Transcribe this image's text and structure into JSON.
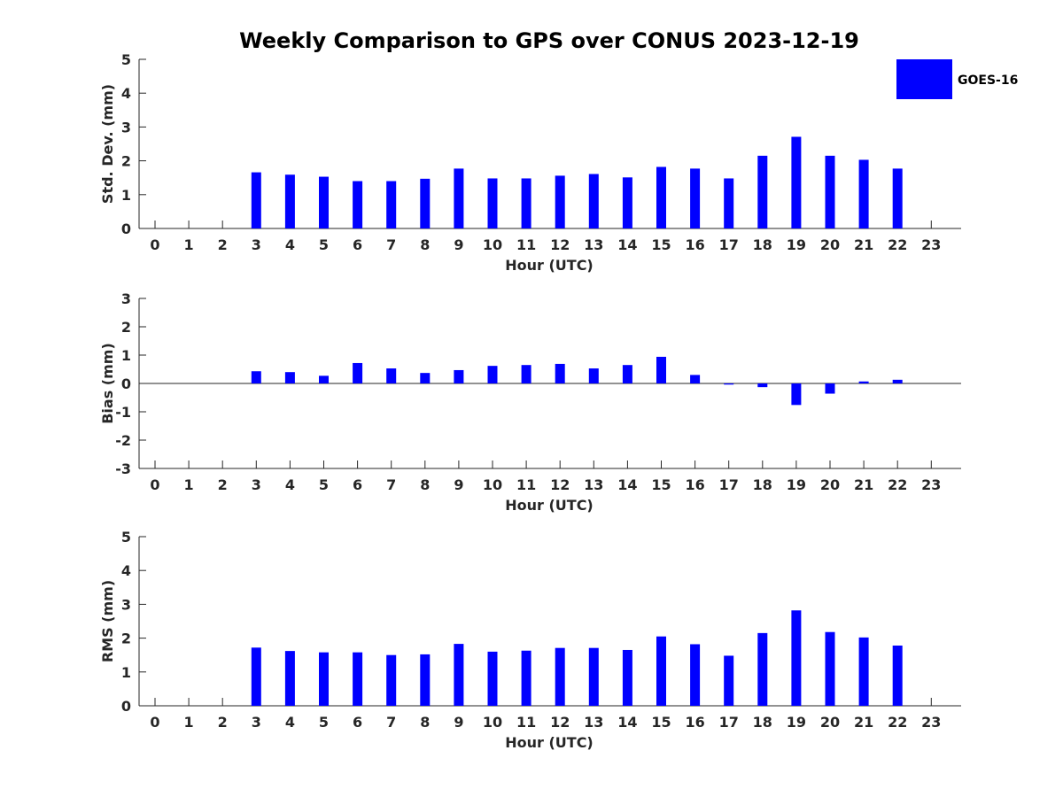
{
  "title": "Weekly Comparison to GPS over CONUS 2023-12-19",
  "legend": {
    "label": "GOES-16",
    "color": "#0000ff"
  },
  "chart_data": [
    {
      "type": "bar",
      "name": "std-dev",
      "ylabel": "Std. Dev. (mm)",
      "xlabel": "Hour (UTC)",
      "ylim": [
        0,
        5
      ],
      "yticks": [
        0,
        1,
        2,
        3,
        4,
        5
      ],
      "baseline_line": false,
      "categories": [
        "0",
        "1",
        "2",
        "3",
        "4",
        "5",
        "6",
        "7",
        "8",
        "9",
        "10",
        "11",
        "12",
        "13",
        "14",
        "15",
        "16",
        "17",
        "18",
        "19",
        "20",
        "21",
        "22",
        "23"
      ],
      "series": [
        {
          "name": "GOES-16",
          "values": [
            null,
            null,
            null,
            1.66,
            1.59,
            1.53,
            1.4,
            1.4,
            1.47,
            1.77,
            1.48,
            1.48,
            1.56,
            1.61,
            1.51,
            1.82,
            1.77,
            1.48,
            2.15,
            2.71,
            2.15,
            2.03,
            1.77,
            null
          ]
        }
      ]
    },
    {
      "type": "bar",
      "name": "bias",
      "ylabel": "Bias (mm)",
      "xlabel": "Hour (UTC)",
      "ylim": [
        -3,
        3
      ],
      "yticks": [
        -3,
        -2,
        -1,
        0,
        1,
        2,
        3
      ],
      "baseline_line": true,
      "categories": [
        "0",
        "1",
        "2",
        "3",
        "4",
        "5",
        "6",
        "7",
        "8",
        "9",
        "10",
        "11",
        "12",
        "13",
        "14",
        "15",
        "16",
        "17",
        "18",
        "19",
        "20",
        "21",
        "22",
        "23"
      ],
      "series": [
        {
          "name": "GOES-16",
          "values": [
            null,
            null,
            null,
            0.43,
            0.4,
            0.27,
            0.72,
            0.53,
            0.37,
            0.47,
            0.62,
            0.65,
            0.69,
            0.53,
            0.65,
            0.94,
            0.3,
            -0.04,
            -0.13,
            -0.76,
            -0.36,
            0.07,
            0.13,
            null
          ]
        }
      ]
    },
    {
      "type": "bar",
      "name": "rms",
      "ylabel": "RMS (mm)",
      "xlabel": "Hour (UTC)",
      "ylim": [
        0,
        5
      ],
      "yticks": [
        0,
        1,
        2,
        3,
        4,
        5
      ],
      "baseline_line": false,
      "categories": [
        "0",
        "1",
        "2",
        "3",
        "4",
        "5",
        "6",
        "7",
        "8",
        "9",
        "10",
        "11",
        "12",
        "13",
        "14",
        "15",
        "16",
        "17",
        "18",
        "19",
        "20",
        "21",
        "22",
        "23"
      ],
      "series": [
        {
          "name": "GOES-16",
          "values": [
            null,
            null,
            null,
            1.72,
            1.62,
            1.58,
            1.58,
            1.5,
            1.52,
            1.83,
            1.6,
            1.63,
            1.71,
            1.71,
            1.65,
            2.05,
            1.82,
            1.48,
            2.15,
            2.82,
            2.18,
            2.02,
            1.78,
            null
          ]
        }
      ]
    }
  ]
}
